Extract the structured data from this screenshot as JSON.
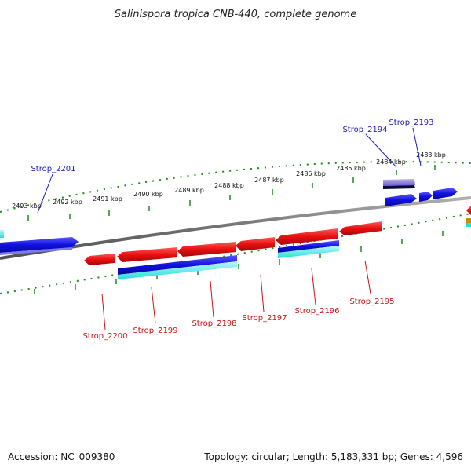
{
  "title": "Salinispora tropica CNB-440, complete genome",
  "footer": {
    "accession": "Accession: NC_009380",
    "summary": "Topology: circular; Length: 5,183,331 bp; Genes: 4,596"
  },
  "ticks": [
    "2483 kbp",
    "2484 kbp",
    "2485 kbp",
    "2486 kbp",
    "2487 kbp",
    "2488 kbp",
    "2489 kbp",
    "2490 kbp",
    "2491 kbp",
    "2492 kbp",
    "2493 kbp"
  ],
  "gene_labels_top": [
    "Strop_2193",
    "Strop_2194",
    "Strop_2201"
  ],
  "gene_labels_bottom": [
    "Strop_2195",
    "Strop_2196",
    "Strop_2197",
    "Strop_2198",
    "Strop_2199",
    "Strop_2200"
  ],
  "colors": {
    "forward": "#1010e0",
    "reverse": "#ee1010",
    "backbone": "#808080",
    "ticks": "#1e8a1e",
    "label_top": "#1a1ab8",
    "label_bottom": "#c81414"
  }
}
